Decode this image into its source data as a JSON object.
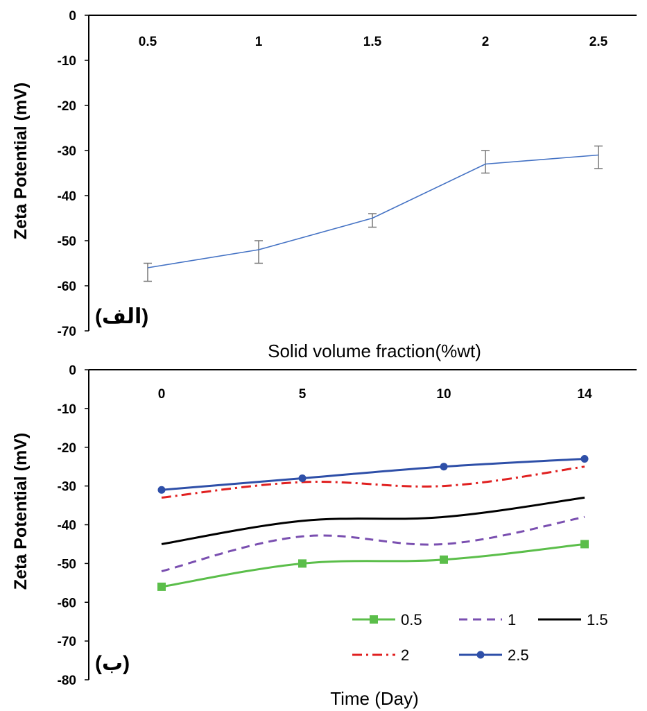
{
  "chart_data": [
    {
      "type": "line",
      "panel_label": "(الف)",
      "xlabel": "Solid volume fraction(%wt)",
      "ylabel": "Zeta Potential (mV)",
      "ylim": [
        -70,
        0
      ],
      "yticks": [
        "0",
        "-10",
        "-20",
        "-30",
        "-40",
        "-50",
        "-60",
        "-70"
      ],
      "categories": [
        "0.5",
        "1",
        "1.5",
        "2",
        "2.5"
      ],
      "x_axis_position": "top",
      "grid": false,
      "series": [
        {
          "values": [
            -56,
            -52,
            -45,
            -33,
            -31
          ],
          "error_low": [
            -59,
            -55,
            -47,
            -35,
            -34
          ],
          "error_high": [
            -55,
            -50,
            -44,
            -30,
            -29
          ],
          "color": "#4472C4"
        }
      ]
    },
    {
      "type": "line",
      "panel_label": "(ب)",
      "xlabel": "Time (Day)",
      "ylabel": "Zeta Potential (mV)",
      "ylim": [
        -80,
        0
      ],
      "yticks": [
        "0",
        "-10",
        "-20",
        "-30",
        "-40",
        "-50",
        "-60",
        "-70",
        "-80"
      ],
      "categories": [
        "0",
        "5",
        "10",
        "14"
      ],
      "x_axis_position": "top",
      "grid": false,
      "legend_position": "bottom-right",
      "series": [
        {
          "name": "0.5",
          "values": [
            -56,
            -50,
            -49,
            -45
          ],
          "color": "#5BBE4A",
          "style": "solid",
          "marker": "square"
        },
        {
          "name": "1",
          "values": [
            -52,
            -43,
            -45,
            -38
          ],
          "color": "#7A4FB0",
          "style": "dashed",
          "marker": "none"
        },
        {
          "name": "1.5",
          "values": [
            -45,
            -39,
            -38,
            -33
          ],
          "color": "#000000",
          "style": "solid",
          "marker": "none"
        },
        {
          "name": "2",
          "values": [
            -33,
            -29,
            -30,
            -25
          ],
          "color": "#E02020",
          "style": "dashdot",
          "marker": "none"
        },
        {
          "name": "2.5",
          "values": [
            -31,
            -28,
            -25,
            -23
          ],
          "color": "#2E4FA8",
          "style": "solid",
          "marker": "circle"
        }
      ]
    }
  ]
}
